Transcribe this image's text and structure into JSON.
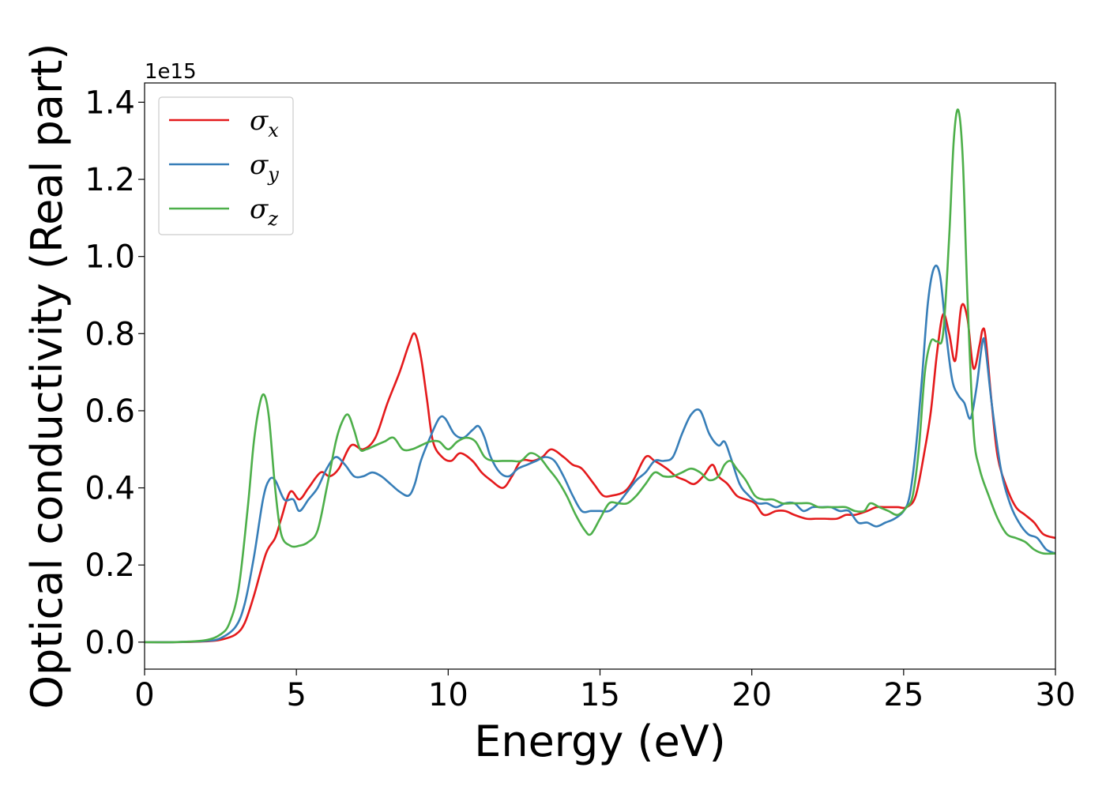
{
  "chart_data": {
    "type": "line",
    "title": "",
    "xlabel": "Energy (eV)",
    "ylabel": "Optical conductivity (Real part)",
    "y_offset_label": "1e15",
    "xlim": [
      0,
      30
    ],
    "ylim": [
      -0.07,
      1.45
    ],
    "x_ticks": [
      0,
      5,
      10,
      15,
      20,
      25,
      30
    ],
    "x_tick_labels": [
      "0",
      "5",
      "10",
      "15",
      "20",
      "25",
      "30"
    ],
    "y_ticks": [
      0.0,
      0.2,
      0.4,
      0.6,
      0.8,
      1.0,
      1.2,
      1.4
    ],
    "y_tick_labels": [
      "0.0",
      "0.2",
      "0.4",
      "0.6",
      "0.8",
      "1.0",
      "1.2",
      "1.4"
    ],
    "grid": false,
    "legend_position": "top-left",
    "series": [
      {
        "name": "σx",
        "legend_symbol": "σ",
        "legend_sub": "x",
        "color": "#e41a1c",
        "x": [
          0,
          1,
          2,
          2.5,
          3,
          3.3,
          3.6,
          4.0,
          4.3,
          4.5,
          4.8,
          5.1,
          5.4,
          5.8,
          6.1,
          6.4,
          6.8,
          7.2,
          7.6,
          8.0,
          8.4,
          8.7,
          8.9,
          9.1,
          9.3,
          9.5,
          9.8,
          10.1,
          10.4,
          10.8,
          11.1,
          11.4,
          11.8,
          12.1,
          12.4,
          12.8,
          13.1,
          13.4,
          13.8,
          14.1,
          14.4,
          14.8,
          15.1,
          15.4,
          15.8,
          16.1,
          16.5,
          16.8,
          17.2,
          17.5,
          17.8,
          18.1,
          18.4,
          18.7,
          18.9,
          19.2,
          19.5,
          19.8,
          20.1,
          20.4,
          20.8,
          21.1,
          21.4,
          21.8,
          22.1,
          22.4,
          22.8,
          23.1,
          23.4,
          23.8,
          24.1,
          24.4,
          24.8,
          25.1,
          25.4,
          25.7,
          25.9,
          26.1,
          26.3,
          26.5,
          26.7,
          26.9,
          27.1,
          27.3,
          27.5,
          27.6,
          27.7,
          27.9,
          28.1,
          28.4,
          28.7,
          29.0,
          29.3,
          29.6,
          30.0
        ],
        "y": [
          0.0,
          0.0,
          0.002,
          0.006,
          0.02,
          0.05,
          0.12,
          0.23,
          0.27,
          0.32,
          0.39,
          0.37,
          0.4,
          0.44,
          0.43,
          0.45,
          0.51,
          0.5,
          0.53,
          0.62,
          0.7,
          0.77,
          0.8,
          0.74,
          0.63,
          0.52,
          0.48,
          0.47,
          0.49,
          0.47,
          0.44,
          0.42,
          0.4,
          0.43,
          0.47,
          0.47,
          0.48,
          0.5,
          0.48,
          0.46,
          0.45,
          0.41,
          0.38,
          0.38,
          0.39,
          0.42,
          0.48,
          0.47,
          0.45,
          0.43,
          0.42,
          0.41,
          0.43,
          0.46,
          0.43,
          0.41,
          0.38,
          0.37,
          0.36,
          0.33,
          0.34,
          0.34,
          0.33,
          0.32,
          0.32,
          0.32,
          0.32,
          0.33,
          0.33,
          0.34,
          0.35,
          0.35,
          0.35,
          0.35,
          0.38,
          0.5,
          0.6,
          0.75,
          0.85,
          0.8,
          0.73,
          0.87,
          0.84,
          0.71,
          0.77,
          0.81,
          0.79,
          0.62,
          0.48,
          0.4,
          0.35,
          0.33,
          0.31,
          0.28,
          0.27
        ]
      },
      {
        "name": "σy",
        "legend_symbol": "σ",
        "legend_sub": "y",
        "color": "#377eb8",
        "x": [
          0,
          1,
          2,
          2.5,
          3,
          3.3,
          3.6,
          3.9,
          4.1,
          4.3,
          4.6,
          4.9,
          5.1,
          5.4,
          5.7,
          6.0,
          6.3,
          6.6,
          6.9,
          7.2,
          7.5,
          7.8,
          8.1,
          8.4,
          8.7,
          8.9,
          9.1,
          9.4,
          9.7,
          9.9,
          10.2,
          10.5,
          10.8,
          11.0,
          11.2,
          11.4,
          11.7,
          12.0,
          12.3,
          12.6,
          12.9,
          13.2,
          13.5,
          13.8,
          14.1,
          14.4,
          14.7,
          15.0,
          15.3,
          15.6,
          15.9,
          16.2,
          16.5,
          16.8,
          17.1,
          17.4,
          17.7,
          18.0,
          18.3,
          18.6,
          18.9,
          19.1,
          19.3,
          19.6,
          19.9,
          20.2,
          20.5,
          20.8,
          21.1,
          21.4,
          21.7,
          22.0,
          22.3,
          22.6,
          22.9,
          23.2,
          23.5,
          23.8,
          24.1,
          24.4,
          24.7,
          25.0,
          25.2,
          25.4,
          25.6,
          25.8,
          26.0,
          26.2,
          26.4,
          26.6,
          26.8,
          27.0,
          27.2,
          27.4,
          27.6,
          27.7,
          27.9,
          28.2,
          28.5,
          28.8,
          29.1,
          29.4,
          29.7,
          30.0
        ],
        "y": [
          0.0,
          0.0,
          0.003,
          0.01,
          0.04,
          0.1,
          0.22,
          0.37,
          0.42,
          0.42,
          0.37,
          0.37,
          0.34,
          0.37,
          0.4,
          0.45,
          0.48,
          0.46,
          0.43,
          0.43,
          0.44,
          0.43,
          0.41,
          0.39,
          0.38,
          0.41,
          0.47,
          0.53,
          0.58,
          0.58,
          0.54,
          0.53,
          0.55,
          0.56,
          0.53,
          0.48,
          0.44,
          0.43,
          0.45,
          0.46,
          0.47,
          0.48,
          0.47,
          0.43,
          0.38,
          0.34,
          0.34,
          0.34,
          0.34,
          0.36,
          0.39,
          0.42,
          0.44,
          0.47,
          0.47,
          0.48,
          0.54,
          0.59,
          0.6,
          0.54,
          0.51,
          0.52,
          0.48,
          0.41,
          0.38,
          0.36,
          0.36,
          0.35,
          0.36,
          0.36,
          0.34,
          0.35,
          0.35,
          0.35,
          0.34,
          0.34,
          0.31,
          0.31,
          0.3,
          0.31,
          0.32,
          0.34,
          0.38,
          0.5,
          0.68,
          0.88,
          0.97,
          0.95,
          0.8,
          0.68,
          0.64,
          0.62,
          0.58,
          0.66,
          0.78,
          0.76,
          0.62,
          0.45,
          0.36,
          0.31,
          0.28,
          0.27,
          0.24,
          0.23
        ]
      },
      {
        "name": "σz",
        "legend_symbol": "σ",
        "legend_sub": "z",
        "color": "#4daf4a",
        "x": [
          0,
          1,
          2,
          2.5,
          2.8,
          3.1,
          3.4,
          3.6,
          3.8,
          3.95,
          4.1,
          4.3,
          4.5,
          4.8,
          5.1,
          5.4,
          5.7,
          6.0,
          6.3,
          6.5,
          6.7,
          6.9,
          7.1,
          7.3,
          7.6,
          7.9,
          8.2,
          8.5,
          8.8,
          9.1,
          9.4,
          9.7,
          10.0,
          10.3,
          10.6,
          10.9,
          11.2,
          11.5,
          11.8,
          12.1,
          12.4,
          12.7,
          13.0,
          13.3,
          13.6,
          13.9,
          14.2,
          14.5,
          14.7,
          15.0,
          15.3,
          15.6,
          15.9,
          16.2,
          16.5,
          16.8,
          17.1,
          17.4,
          17.7,
          18.0,
          18.3,
          18.6,
          18.9,
          19.1,
          19.3,
          19.5,
          19.8,
          20.1,
          20.4,
          20.7,
          21.0,
          21.3,
          21.6,
          21.9,
          22.2,
          22.5,
          22.8,
          23.1,
          23.4,
          23.7,
          23.9,
          24.2,
          24.5,
          24.8,
          25.1,
          25.3,
          25.5,
          25.7,
          25.9,
          26.1,
          26.3,
          26.5,
          26.65,
          26.8,
          26.95,
          27.1,
          27.3,
          27.5,
          27.8,
          28.1,
          28.4,
          28.7,
          29.0,
          29.3,
          29.6,
          30.0
        ],
        "y": [
          0.0,
          0.0,
          0.005,
          0.02,
          0.05,
          0.14,
          0.35,
          0.52,
          0.62,
          0.64,
          0.58,
          0.4,
          0.28,
          0.25,
          0.25,
          0.26,
          0.29,
          0.4,
          0.52,
          0.57,
          0.59,
          0.55,
          0.5,
          0.5,
          0.51,
          0.52,
          0.53,
          0.5,
          0.5,
          0.51,
          0.52,
          0.52,
          0.5,
          0.52,
          0.53,
          0.52,
          0.48,
          0.47,
          0.47,
          0.47,
          0.47,
          0.49,
          0.48,
          0.45,
          0.42,
          0.38,
          0.33,
          0.29,
          0.28,
          0.32,
          0.36,
          0.36,
          0.36,
          0.38,
          0.41,
          0.44,
          0.43,
          0.43,
          0.44,
          0.45,
          0.44,
          0.42,
          0.43,
          0.46,
          0.47,
          0.45,
          0.42,
          0.38,
          0.37,
          0.37,
          0.36,
          0.36,
          0.36,
          0.36,
          0.35,
          0.35,
          0.35,
          0.35,
          0.34,
          0.34,
          0.36,
          0.35,
          0.34,
          0.33,
          0.35,
          0.38,
          0.5,
          0.7,
          0.78,
          0.78,
          0.8,
          1.05,
          1.3,
          1.38,
          1.25,
          0.9,
          0.55,
          0.45,
          0.38,
          0.32,
          0.28,
          0.27,
          0.26,
          0.24,
          0.23,
          0.23
        ]
      }
    ]
  }
}
